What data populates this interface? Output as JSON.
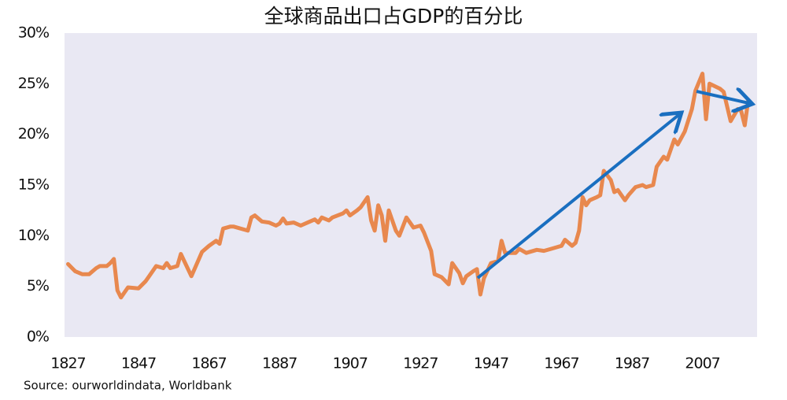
{
  "chart_data": {
    "type": "line",
    "title": "全球商品出口占GDP的百分比",
    "source": "Source: ourworldindata,  Worldbank",
    "x": [
      1827,
      1829,
      1831,
      1833,
      1835,
      1836,
      1838,
      1839,
      1840,
      1841,
      1842,
      1844,
      1847,
      1849,
      1850,
      1852,
      1854,
      1855,
      1856,
      1858,
      1859,
      1862,
      1863,
      1865,
      1867,
      1869,
      1870,
      1871,
      1873,
      1874,
      1878,
      1879,
      1880,
      1882,
      1884,
      1886,
      1887,
      1888,
      1889,
      1891,
      1893,
      1895,
      1897,
      1898,
      1899,
      1901,
      1902,
      1905,
      1906,
      1907,
      1909,
      1910,
      1912,
      1913,
      1914,
      1915,
      1916,
      1917,
      1918,
      1920,
      1921,
      1923,
      1925,
      1927,
      1928,
      1930,
      1931,
      1933,
      1935,
      1936,
      1938,
      1939,
      1940,
      1942,
      1943,
      1944,
      1945,
      1947,
      1949,
      1950,
      1951,
      1954,
      1955,
      1957,
      1960,
      1962,
      1964,
      1966,
      1967,
      1968,
      1970,
      1971,
      1972,
      1973,
      1974,
      1975,
      1977,
      1978,
      1979,
      1981,
      1982,
      1983,
      1985,
      1986,
      1988,
      1990,
      1991,
      1993,
      1994,
      1996,
      1997,
      1999,
      2000,
      2002,
      2004,
      2005,
      2007,
      2008,
      2009,
      2012,
      2013,
      2015,
      2017,
      2018,
      2019,
      2020
    ],
    "values": [
      7.2,
      6.5,
      6.2,
      6.2,
      6.8,
      7.0,
      7.0,
      7.3,
      7.7,
      4.6,
      3.9,
      4.9,
      4.8,
      5.5,
      6.0,
      7.0,
      6.8,
      7.3,
      6.8,
      7.0,
      8.2,
      6.0,
      6.8,
      8.4,
      9.0,
      9.5,
      9.2,
      10.7,
      10.9,
      10.9,
      10.5,
      11.8,
      12.0,
      11.4,
      11.3,
      11.0,
      11.2,
      11.7,
      11.2,
      11.3,
      11.0,
      11.3,
      11.6,
      11.3,
      11.8,
      11.5,
      11.8,
      12.2,
      12.5,
      12.0,
      12.5,
      12.8,
      13.8,
      11.5,
      10.5,
      13.0,
      12.0,
      9.5,
      12.5,
      10.5,
      10.0,
      11.8,
      10.8,
      11.0,
      10.3,
      8.5,
      6.2,
      5.9,
      5.2,
      7.3,
      6.3,
      5.3,
      6.0,
      6.5,
      6.7,
      4.2,
      5.8,
      7.3,
      7.5,
      9.5,
      8.3,
      8.3,
      8.7,
      8.3,
      8.6,
      8.5,
      8.7,
      8.9,
      9.0,
      9.6,
      9.0,
      9.3,
      10.5,
      13.8,
      13.0,
      13.5,
      13.8,
      14.0,
      16.4,
      15.5,
      14.3,
      14.5,
      13.5,
      14.0,
      14.8,
      15.0,
      14.8,
      15.0,
      16.8,
      17.8,
      17.5,
      19.5,
      19.0,
      20.3,
      22.5,
      24.3,
      26.0,
      21.5,
      25.0,
      24.5,
      24.2,
      21.3,
      22.5,
      22.3,
      20.9,
      23.4
    ],
    "color": "#e8884e",
    "xlim": [
      1826,
      2022.5
    ],
    "xticks": [
      1827,
      1847,
      1867,
      1887,
      1907,
      1927,
      1947,
      1967,
      1987,
      2007
    ],
    "ylim": [
      0,
      30
    ],
    "yticks": [
      {
        "value": 0,
        "label": "0%"
      },
      {
        "value": 5,
        "label": "5%"
      },
      {
        "value": 10,
        "label": "10%"
      },
      {
        "value": 15,
        "label": "15%"
      },
      {
        "value": 20,
        "label": "20%"
      },
      {
        "value": 25,
        "label": "25%"
      },
      {
        "value": 30,
        "label": "30%"
      }
    ]
  }
}
